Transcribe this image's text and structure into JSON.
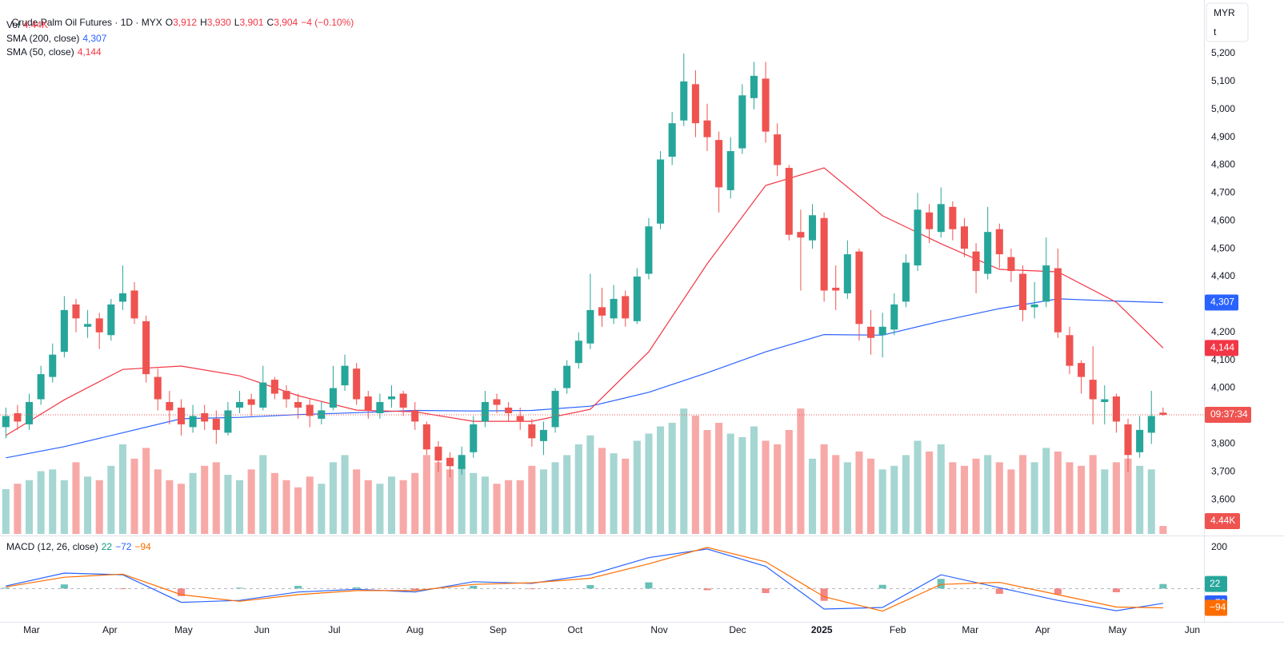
{
  "chart_data": {
    "type": "candlestick",
    "header": {
      "symbol": "Crude Palm Oil Futures · 1D · MYX",
      "ohlc_letters": [
        "O",
        "H",
        "L",
        "C"
      ],
      "ohlc_labels": [
        "3,912",
        "3,930",
        "3,901",
        "3,904"
      ],
      "change": "−4 (−0.10%)"
    },
    "currency": "MYR",
    "unit": "t",
    "countdown": "09:37:34",
    "xlim": [
      -0.5,
      102.5
    ],
    "xticks": [
      {
        "value": 2.2,
        "label": "Mar"
      },
      {
        "value": 8.9,
        "label": "Apr"
      },
      {
        "value": 15.2,
        "label": "May"
      },
      {
        "value": 21.9,
        "label": "Jun"
      },
      {
        "value": 28.1,
        "label": "Jul"
      },
      {
        "value": 35.0,
        "label": "Aug"
      },
      {
        "value": 42.1,
        "label": "Sep"
      },
      {
        "value": 48.7,
        "label": "Oct"
      },
      {
        "value": 55.9,
        "label": "Nov"
      },
      {
        "value": 62.6,
        "label": "Dec"
      },
      {
        "value": 69.8,
        "label": "2025"
      },
      {
        "value": 76.3,
        "label": "Feb"
      },
      {
        "value": 82.5,
        "label": "Mar"
      },
      {
        "value": 88.7,
        "label": "Apr"
      },
      {
        "value": 95.1,
        "label": "May"
      },
      {
        "value": 101.5,
        "label": "Jun"
      }
    ],
    "ylim": [
      3477,
      5392
    ],
    "yticks": [
      {
        "value": 3600,
        "label": "3,600"
      },
      {
        "value": 3700,
        "label": "3,700"
      },
      {
        "value": 3800,
        "label": "3,800"
      },
      {
        "value": 3900,
        "label": "3,900"
      },
      {
        "value": 4000,
        "label": "4,000"
      },
      {
        "value": 4100,
        "label": "4,100"
      },
      {
        "value": 4200,
        "label": "4,200"
      },
      {
        "value": 4300,
        "label": "4,300"
      },
      {
        "value": 4400,
        "label": "4,400"
      },
      {
        "value": 4500,
        "label": "4,500"
      },
      {
        "value": 4600,
        "label": "4,600"
      },
      {
        "value": 4700,
        "label": "4,700"
      },
      {
        "value": 4800,
        "label": "4,800"
      },
      {
        "value": 4900,
        "label": "4,900"
      },
      {
        "value": 5000,
        "label": "5,000"
      },
      {
        "value": 5100,
        "label": "5,100"
      },
      {
        "value": 5200,
        "label": "5,200"
      }
    ],
    "candles": {
      "up_color": "#26a69a",
      "down_color": "#ef5350",
      "open": [
        3860,
        3910,
        3870,
        3960,
        4040,
        4130,
        4300,
        4220,
        4250,
        4190,
        4310,
        4350,
        4240,
        4040,
        3950,
        3930,
        3860,
        3910,
        3890,
        3840,
        3930,
        3960,
        3930,
        4030,
        3990,
        3950,
        3940,
        3890,
        3930,
        4010,
        4070,
        3970,
        3910,
        3960,
        3980,
        3920,
        3870,
        3790,
        3750,
        3710,
        3770,
        3880,
        3960,
        3930,
        3900,
        3870,
        3810,
        3860,
        4000,
        4090,
        4160,
        4290,
        4250,
        4330,
        4240,
        4410,
        4590,
        4830,
        4960,
        5090,
        4960,
        4890,
        4710,
        4860,
        5040,
        5110,
        4910,
        4790,
        4560,
        4530,
        4610,
        4360,
        4340,
        4490,
        4220,
        4190,
        4210,
        4310,
        4440,
        4630,
        4560,
        4650,
        4580,
        4490,
        4410,
        4570,
        4470,
        4410,
        4290,
        4310,
        4430,
        4190,
        4090,
        4030,
        3950,
        3970,
        3870,
        3770,
        3840,
        3912
      ],
      "high": [
        3930,
        3940,
        3980,
        4080,
        4160,
        4330,
        4320,
        4280,
        4270,
        4320,
        4440,
        4380,
        4260,
        4070,
        3990,
        3960,
        3940,
        3940,
        3920,
        3950,
        3990,
        3980,
        4080,
        4040,
        4010,
        3980,
        3960,
        3950,
        4080,
        4120,
        4090,
        3990,
        3980,
        4010,
        3990,
        3950,
        3880,
        3810,
        3770,
        3790,
        3900,
        3990,
        3980,
        3950,
        3930,
        3890,
        3880,
        4000,
        4100,
        4200,
        4410,
        4360,
        4370,
        4350,
        4430,
        4610,
        4850,
        4990,
        5200,
        5140,
        5020,
        4920,
        4900,
        5090,
        5170,
        5170,
        4950,
        4800,
        4640,
        4660,
        4630,
        4440,
        4530,
        4500,
        4280,
        4270,
        4340,
        4480,
        4700,
        4660,
        4720,
        4670,
        4610,
        4520,
        4650,
        4590,
        4500,
        4440,
        4380,
        4540,
        4500,
        4220,
        4100,
        4150,
        4010,
        3980,
        3890,
        3900,
        3990,
        3930
      ],
      "low": [
        3820,
        3850,
        3850,
        3940,
        4020,
        4110,
        4200,
        4180,
        4140,
        4170,
        4280,
        4230,
        4020,
        3920,
        3870,
        3830,
        3840,
        3850,
        3800,
        3830,
        3910,
        3900,
        3920,
        3960,
        3930,
        3890,
        3860,
        3870,
        3920,
        3990,
        3940,
        3890,
        3890,
        3930,
        3900,
        3850,
        3760,
        3700,
        3680,
        3690,
        3750,
        3860,
        3910,
        3880,
        3850,
        3790,
        3760,
        3840,
        3980,
        4070,
        4140,
        4220,
        4230,
        4220,
        4230,
        4390,
        4570,
        4800,
        4940,
        4900,
        4850,
        4630,
        4680,
        4840,
        5000,
        4880,
        4760,
        4530,
        4350,
        4500,
        4310,
        4280,
        4320,
        4170,
        4120,
        4110,
        4190,
        4290,
        4420,
        4520,
        4540,
        4530,
        4470,
        4340,
        4390,
        4430,
        4380,
        4240,
        4250,
        4290,
        4180,
        4050,
        3980,
        3870,
        3870,
        3840,
        3700,
        3750,
        3800,
        3901
      ],
      "close": [
        3900,
        3880,
        3950,
        4050,
        4120,
        4280,
        4250,
        4230,
        4200,
        4300,
        4340,
        4250,
        4050,
        3960,
        3920,
        3870,
        3900,
        3880,
        3850,
        3920,
        3950,
        3940,
        4020,
        3980,
        3960,
        3930,
        3900,
        3920,
        4000,
        4080,
        3960,
        3920,
        3950,
        3970,
        3930,
        3880,
        3780,
        3740,
        3720,
        3760,
        3870,
        3950,
        3940,
        3910,
        3880,
        3820,
        3850,
        3990,
        4080,
        4170,
        4280,
        4260,
        4320,
        4250,
        4400,
        4580,
        4820,
        4950,
        5100,
        4950,
        4900,
        4720,
        4850,
        5050,
        5120,
        4920,
        4800,
        4550,
        4540,
        4620,
        4350,
        4350,
        4480,
        4230,
        4180,
        4220,
        4300,
        4450,
        4640,
        4570,
        4660,
        4570,
        4500,
        4420,
        4560,
        4480,
        4420,
        4280,
        4300,
        4440,
        4200,
        4080,
        4040,
        3960,
        3960,
        3880,
        3760,
        3850,
        3900,
        3904
      ]
    },
    "volume": {
      "name": "Vol",
      "value_label": "4.44K",
      "ylim": [
        0,
        298
      ],
      "up_color": "#a5d6d2",
      "down_color": "#f7a9a7",
      "values": [
        25,
        28,
        30,
        35,
        36,
        30,
        40,
        32,
        30,
        38,
        50,
        42,
        48,
        36,
        30,
        28,
        34,
        38,
        40,
        33,
        30,
        36,
        44,
        34,
        30,
        26,
        32,
        28,
        40,
        44,
        36,
        30,
        28,
        32,
        30,
        34,
        44,
        40,
        36,
        38,
        34,
        32,
        28,
        30,
        30,
        38,
        36,
        40,
        44,
        50,
        55,
        48,
        45,
        42,
        52,
        56,
        60,
        62,
        70,
        66,
        58,
        62,
        56,
        54,
        60,
        52,
        50,
        58,
        70,
        42,
        50,
        44,
        40,
        46,
        42,
        36,
        38,
        44,
        52,
        46,
        50,
        40,
        38,
        42,
        44,
        40,
        36,
        44,
        40,
        48,
        46,
        40,
        38,
        44,
        36,
        40,
        42,
        38,
        36,
        4.44
      ]
    },
    "sma": [
      {
        "name": "SMA (200, close)",
        "color": "#2962ff",
        "value_label": "4,307",
        "x": [
          0,
          5,
          10,
          15,
          20,
          25,
          30,
          35,
          40,
          45,
          50,
          55,
          60,
          65,
          70,
          75,
          80,
          85,
          90,
          95,
          99
        ],
        "values": [
          3750,
          3790,
          3840,
          3890,
          3895,
          3905,
          3912,
          3920,
          3918,
          3920,
          3935,
          3985,
          4055,
          4130,
          4192,
          4190,
          4240,
          4285,
          4320,
          4312,
          4307
        ]
      },
      {
        "name": "SMA (50, close)",
        "color": "#f23645",
        "value_label": "4,144",
        "x": [
          0,
          5,
          10,
          15,
          20,
          25,
          30,
          35,
          40,
          45,
          50,
          55,
          60,
          65,
          70,
          75,
          80,
          85,
          90,
          95,
          99
        ],
        "values": [
          3830,
          3958,
          4067,
          4079,
          4044,
          3973,
          3921,
          3915,
          3881,
          3881,
          3924,
          4130,
          4446,
          4727,
          4790,
          4618,
          4518,
          4426,
          4417,
          4308,
          4144
        ]
      }
    ],
    "macd": {
      "name": "MACD (12, 26, close)",
      "ylim": [
        -162,
        250
      ],
      "yticks": [
        200
      ],
      "x": [
        0,
        5,
        10,
        15,
        20,
        25,
        30,
        35,
        40,
        45,
        50,
        55,
        60,
        65,
        70,
        75,
        80,
        85,
        90,
        95,
        99
      ],
      "histogram": {
        "up_color": "#26a69a",
        "down_color": "#ef5350",
        "value_label": "22",
        "values": [
          4,
          20,
          -3,
          -37,
          4,
          13,
          6,
          -7,
          13,
          -3,
          17,
          30,
          -8,
          -22,
          -60,
          18,
          47,
          -26,
          -28,
          -18,
          22
        ]
      },
      "macd": {
        "color": "#2962ff",
        "value_label": "−72",
        "values": [
          12,
          75,
          67,
          -67,
          -58,
          -17,
          -4,
          -17,
          33,
          25,
          67,
          150,
          192,
          108,
          -100,
          -92,
          67,
          4,
          -58,
          -108,
          -72
        ]
      },
      "signal": {
        "color": "#ff6d00",
        "value_label": "−94",
        "values": [
          8,
          55,
          70,
          -30,
          -62,
          -30,
          -10,
          -10,
          20,
          28,
          50,
          120,
          200,
          130,
          -40,
          -110,
          20,
          30,
          -30,
          -90,
          -94
        ]
      }
    }
  }
}
